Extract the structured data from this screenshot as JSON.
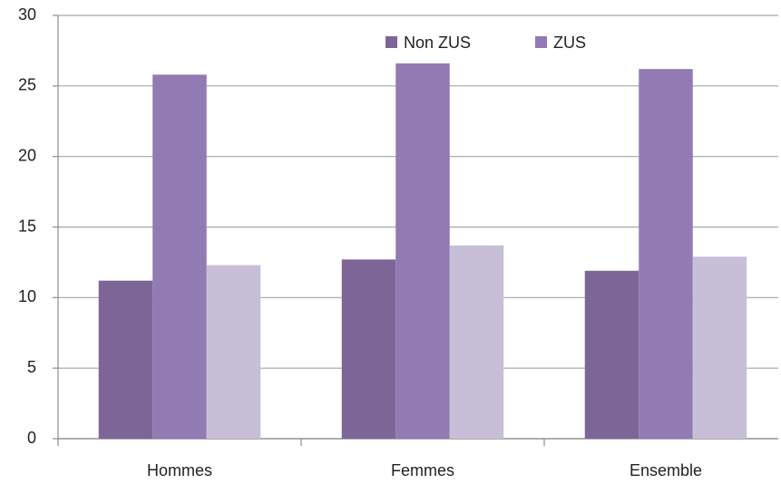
{
  "chart_data": {
    "type": "bar",
    "categories": [
      "Hommes",
      "Femmes",
      "Ensemble"
    ],
    "series": [
      {
        "name": "Non ZUS",
        "color": "#7e6597",
        "values": [
          11.2,
          12.7,
          11.9
        ]
      },
      {
        "name": "ZUS",
        "color": "#927ab3",
        "values": [
          25.8,
          26.6,
          26.2
        ]
      },
      {
        "color": "#c7bfd7",
        "values": [
          12.3,
          13.7,
          12.9
        ]
      }
    ],
    "ylim": [
      0,
      30
    ],
    "yticks": [
      0,
      5,
      10,
      15,
      20,
      25,
      30
    ],
    "grid": true,
    "legend": "top"
  }
}
